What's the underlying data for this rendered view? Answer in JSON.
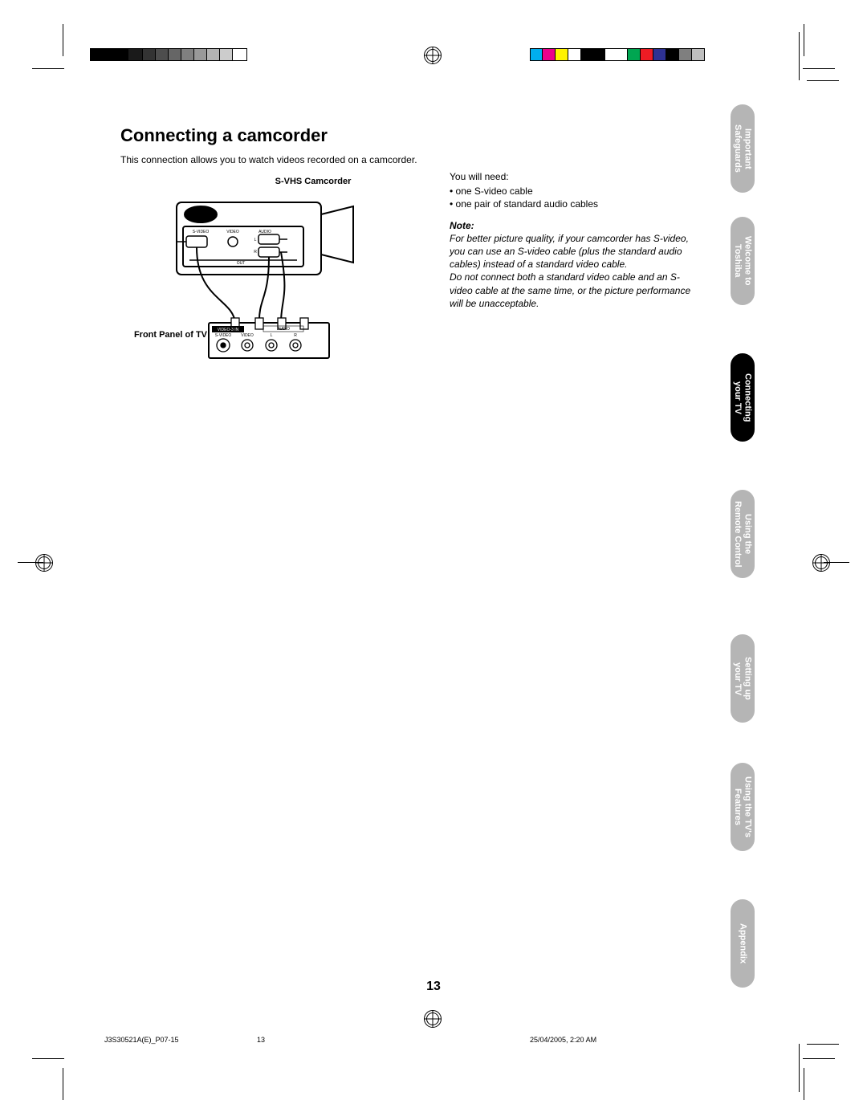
{
  "heading": "Connecting a camcorder",
  "intro": "This connection allows you to watch videos recorded on a camcorder.",
  "diagram": {
    "label_top": "S-VHS Camcorder",
    "label_left": "Front Panel of TV",
    "ports_cam": [
      "S-VIDEO",
      "VIDEO",
      "AUDIO"
    ],
    "ports_cam_lr": [
      "L",
      "R"
    ],
    "out_label": "OUT",
    "tv_ports": [
      "S-VIDEO",
      "VIDEO",
      "L",
      "R"
    ],
    "tv_video3in": "VIDEO-3 IN"
  },
  "right": {
    "need_label": "You will need:",
    "needs": [
      "one S-video cable",
      "one pair of standard audio cables"
    ],
    "note_heading": "Note:",
    "note_p1": "For better picture quality, if your camcorder has S-video, you can use an S-video cable (plus the standard audio cables) instead of a standard video cable.",
    "note_p2": "Do not connect both a standard video cable and an S-video cable at the same time, or the picture performance will be unacceptable."
  },
  "tabs": [
    {
      "label": "Important\nSafeguards",
      "active": false
    },
    {
      "label": "Welcome to\nToshiba",
      "active": false
    },
    {
      "label": "Connecting\nyour TV",
      "active": true
    },
    {
      "label": "Using the\nRemote Control",
      "active": false
    },
    {
      "label": "Setting up\nyour TV",
      "active": false
    },
    {
      "label": "Using the TV's\nFeatures",
      "active": false
    },
    {
      "label": "Appendix",
      "active": false
    }
  ],
  "page_number": "13",
  "footer": {
    "file": "J3S30521A(E)_P07-15",
    "page": "13",
    "timestamp": "25/04/2005, 2:20 AM"
  },
  "colorbars": {
    "left_widths": [
      24,
      24,
      18,
      16,
      16,
      16,
      16,
      16,
      16,
      16,
      18
    ],
    "left_colors": [
      "#000000",
      "#000000",
      "#1a1a1a",
      "#333333",
      "#4d4d4d",
      "#666666",
      "#808080",
      "#999999",
      "#b3b3b3",
      "#cccccc",
      "#ffffff"
    ],
    "left_borders": [
      "#000",
      "#000",
      "#000",
      "#000",
      "#000",
      "#000",
      "#000",
      "#000",
      "#000",
      "#000",
      "#000"
    ],
    "right_widths": [
      16,
      16,
      16,
      16,
      30,
      28,
      16,
      16,
      16,
      16,
      16,
      16
    ],
    "right_colors": [
      "#00aeef",
      "#ec008c",
      "#fff200",
      "#ffffff",
      "#000000",
      "#ffffff",
      "#00a651",
      "#ed1c24",
      "#2e3192",
      "#000000",
      "#7f7f7f",
      "#bfbfbf"
    ],
    "right_borders": [
      "#000",
      "#000",
      "#000",
      "#000",
      "#000",
      "#000",
      "#000",
      "#000",
      "#000",
      "#000",
      "#000",
      "#000"
    ]
  },
  "colors": {
    "tab_inactive": "#b5b5b5",
    "tab_active": "#000000",
    "text": "#000000",
    "background": "#ffffff"
  }
}
